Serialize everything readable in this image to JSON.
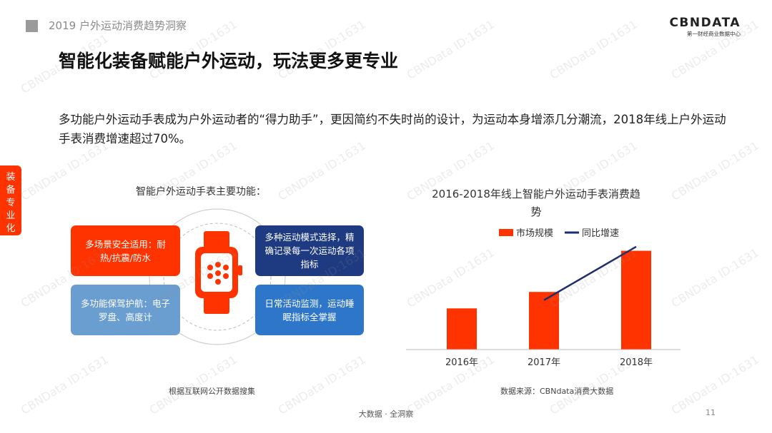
{
  "header": {
    "report_title": "2019 户外运动消费趋势洞察",
    "logo_main": "CBNDATA",
    "logo_sub": "第一财经商业数据中心"
  },
  "title": "智能化装备赋能户外运动，玩法更多更专业",
  "paragraph": "多功能户外运动手表成为户外运动者的“得力助手”，更因简约不失时尚的设计，为运动本身增添几分潮流，2018年线上户外运动手表消费增速超过70%。",
  "side_tab": [
    "装",
    "备",
    "专",
    "业",
    "化"
  ],
  "functions": {
    "title": "智能户外运动手表主要功能：",
    "boxes": [
      "多场景安全适用：耐热/抗震/防水",
      "多功能保驾护航：电子罗盘、高度计",
      "多种运动模式选择，精确记录每一次运动各项指标",
      "日常活动监测，运动睡眠指标全掌握"
    ],
    "source": "根据互联网公开数据搜集"
  },
  "chart_data": {
    "type": "bar",
    "title": "2016-2018年线上智能户外运动手表消费趋势",
    "categories": [
      "2016年",
      "2017年",
      "2018年"
    ],
    "series": [
      {
        "name": "市场规模",
        "type": "bar",
        "values": [
          1.0,
          1.4,
          2.4
        ],
        "color": "#ff3300"
      },
      {
        "name": "同比增速",
        "type": "line",
        "values": [
          null,
          1.2,
          2.5
        ],
        "color": "#1e2d6b"
      }
    ],
    "ylim": [
      0,
      2.6
    ],
    "legend_position": "top",
    "grid": false,
    "source": "数据来源：CBNdata消费大数据"
  },
  "footer": "大数据 · 全洞察",
  "page_number": "11",
  "watermark": "CBNData ID:1631"
}
